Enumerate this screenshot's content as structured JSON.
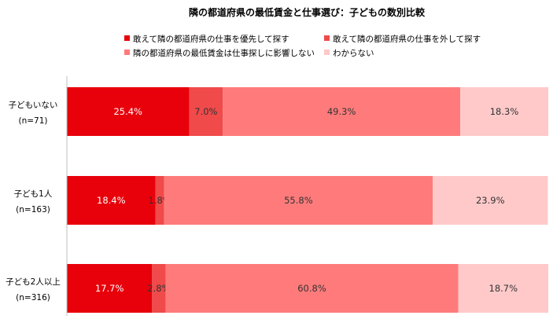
{
  "chart_data": {
    "type": "bar",
    "orientation": "horizontal-stacked-100",
    "title": "隣の都道府県の最低賃金と仕事選び：子どもの数別比較",
    "categories": [
      {
        "label": "子どもいない",
        "n": "(n=71)"
      },
      {
        "label": "子ども1人",
        "n": "(n=163)"
      },
      {
        "label": "子ども2人以上",
        "n": "(n=316)"
      }
    ],
    "series": [
      {
        "name": "敢えて隣の都道府県の仕事を優先して探す",
        "color": "#e8000b",
        "label_color": "#ffffff",
        "values": [
          25.4,
          18.4,
          17.7
        ]
      },
      {
        "name": "敢えて隣の都道府県の仕事を外して探す",
        "color": "#f04a4a",
        "label_color": "#333333",
        "values": [
          7.0,
          1.8,
          2.8
        ]
      },
      {
        "name": "隣の都道府県の最低賃金は仕事探しに影響しない",
        "color": "#ff7b7b",
        "label_color": "#333333",
        "values": [
          49.3,
          55.8,
          60.8
        ]
      },
      {
        "name": "わからない",
        "color": "#ffc9c9",
        "label_color": "#333333",
        "values": [
          18.3,
          23.9,
          18.7
        ]
      }
    ],
    "value_suffix": "%",
    "xlim": [
      0,
      100
    ],
    "grid": false,
    "legend_position": "top"
  }
}
